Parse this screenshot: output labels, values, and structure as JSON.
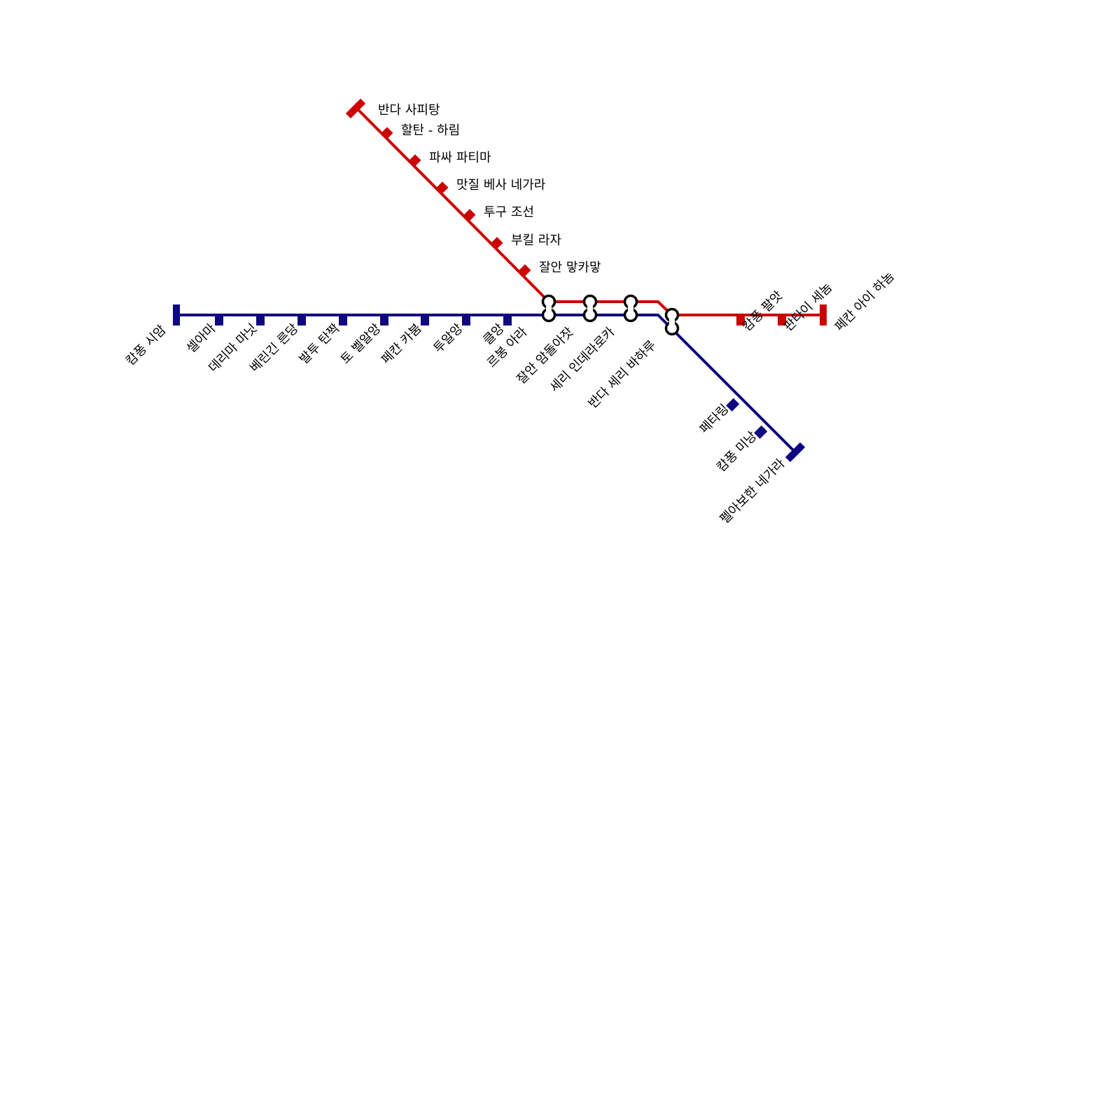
{
  "colors": {
    "red_line": "#cc0000",
    "blue_line": "#0f0780"
  },
  "blue_line": {
    "stations": [
      "캄퐁 시암",
      "셀아마",
      "데리마 마닛",
      "베린긴 른당",
      "발투 탄짝",
      "토 벨알앙",
      "페칸 카붐",
      "투알앙",
      "클앙",
      "르봉 아라"
    ],
    "branch": [
      "페타링",
      "캄퐁 미낭",
      "펠아보한 네가라"
    ]
  },
  "red_line": {
    "stations": [
      "반다 사피탕",
      "할탄 - 하림",
      "파싸 파티마",
      "맛질 베사 네가라",
      "투구 조선",
      "부킬 라자",
      "잘안 맣카맣"
    ],
    "east": [
      "캄퐁 팔앗",
      "판타이 세놈",
      "페칸 아이 하놈"
    ]
  },
  "interchanges": [
    "잘안 암돌아잣",
    "세리 인데라로카",
    "반다 세리 바하루"
  ]
}
